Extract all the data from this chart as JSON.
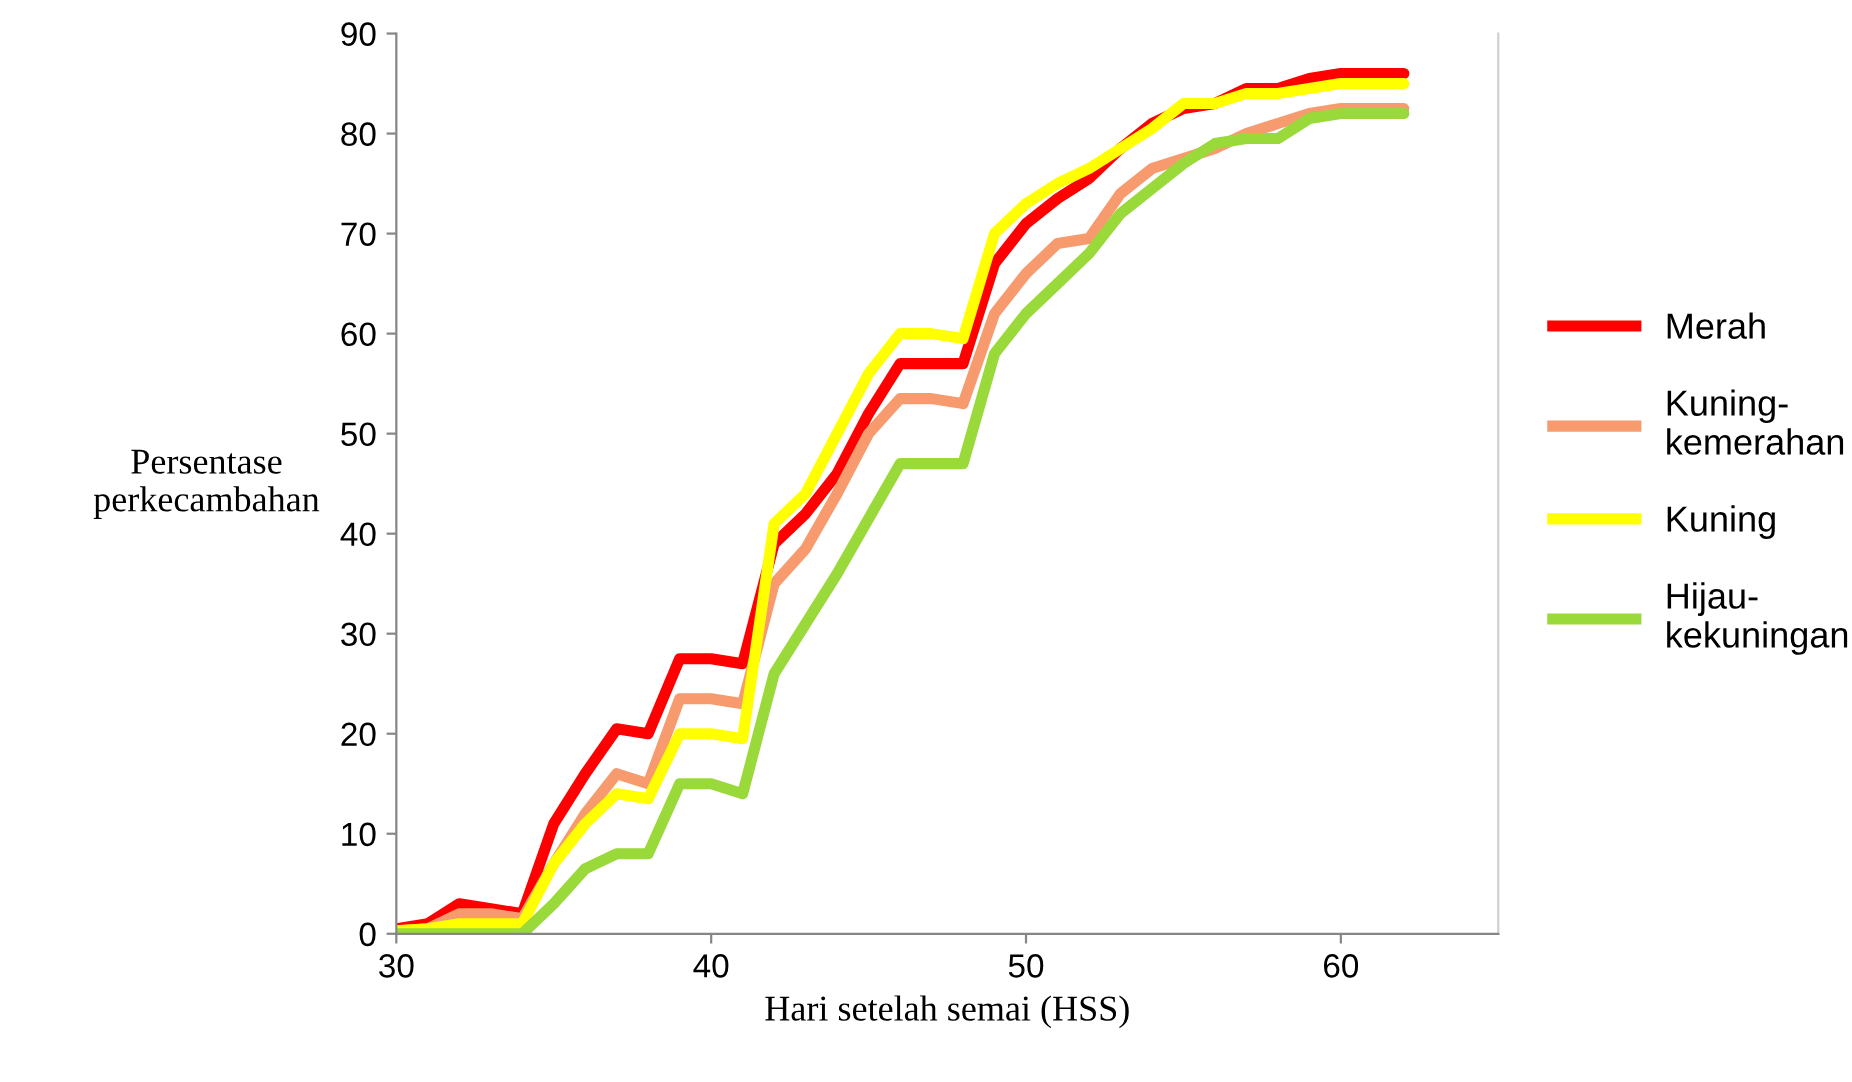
{
  "chart_data": {
    "type": "line",
    "xlabel": "Hari setelah semai (HSS)",
    "ylabel": "Persentase\nperkecambahan",
    "x": [
      30,
      31,
      32,
      33,
      34,
      35,
      36,
      37,
      38,
      39,
      40,
      41,
      42,
      43,
      44,
      45,
      46,
      47,
      48,
      49,
      50,
      51,
      52,
      53,
      54,
      55,
      56,
      57,
      58,
      59,
      60,
      61,
      62
    ],
    "series": [
      {
        "name": "Merah",
        "color": "#ff0000",
        "values": [
          0.5,
          1,
          3,
          2.5,
          2,
          11,
          16,
          20.5,
          20,
          27.5,
          27.5,
          27,
          39,
          42,
          46,
          52,
          57,
          57,
          57,
          67,
          71,
          73.5,
          75.5,
          78.5,
          81,
          82.5,
          83,
          84.5,
          84.5,
          85.5,
          86,
          86,
          86
        ]
      },
      {
        "name": "Kuning-\nkemerahan",
        "color": "#f79b6e",
        "values": [
          0.3,
          0.5,
          2,
          2,
          1.5,
          7,
          12,
          16,
          15,
          23.5,
          23.5,
          23,
          35,
          38.5,
          44,
          50,
          53.5,
          53.5,
          53,
          62,
          66,
          69,
          69.5,
          74,
          76.5,
          77.5,
          78.5,
          80,
          81,
          82,
          82.5,
          82.5,
          82.5
        ]
      },
      {
        "name": "Kuning",
        "color": "#ffff00",
        "values": [
          0.3,
          0.5,
          1,
          1,
          1,
          7,
          11,
          14,
          13.5,
          20,
          20,
          19.5,
          41,
          44,
          50,
          56,
          60,
          60,
          59.5,
          70,
          73,
          75,
          76.5,
          78.5,
          80.5,
          83,
          83,
          84,
          84,
          84.5,
          85,
          85,
          85
        ]
      },
      {
        "name": "Hijau-\nkekuningan",
        "color": "#99d93a",
        "values": [
          0,
          0,
          0,
          0,
          0,
          3,
          6.5,
          8,
          8,
          15,
          15,
          14,
          26,
          31,
          36,
          41.5,
          47,
          47,
          47,
          58,
          62,
          65,
          68,
          72,
          74.5,
          77,
          79,
          79.5,
          79.5,
          81.5,
          82,
          82,
          82
        ]
      }
    ],
    "xlim": [
      30,
      65
    ],
    "xticks": [
      30,
      40,
      50,
      60
    ],
    "ylim": [
      0,
      90
    ],
    "yticks": [
      0,
      10,
      20,
      30,
      40,
      50,
      60,
      70,
      80,
      90
    ],
    "grid": false,
    "legend": "right",
    "marker": "none",
    "line_style": "solid"
  }
}
